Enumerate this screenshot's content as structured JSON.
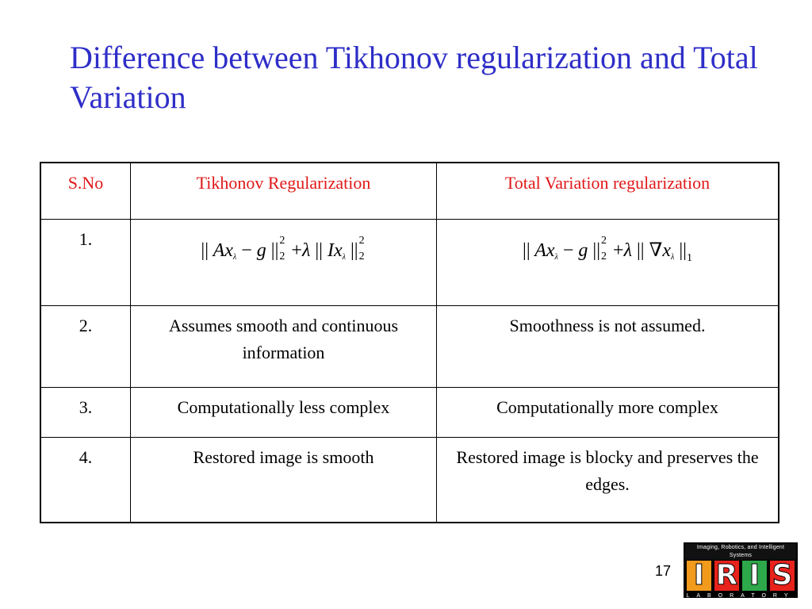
{
  "slide": {
    "title": "Difference between Tikhonov regularization and Total Variation",
    "page_number": "17"
  },
  "table": {
    "headers": [
      "S.No",
      "Tikhonov Regularization",
      "Total Variation regularization"
    ],
    "rows": [
      {
        "sno": "1.",
        "tikhonov": "",
        "tv": ""
      },
      {
        "sno": "2.",
        "tikhonov": "Assumes smooth and continuous information",
        "tv": "Smoothness is not assumed."
      },
      {
        "sno": "3.",
        "tikhonov": "Computationally less complex",
        "tv": "Computationally more complex"
      },
      {
        "sno": "4.",
        "tikhonov": "Restored image is smooth",
        "tv": "Restored image is blocky and preserves the edges."
      }
    ]
  },
  "formulas": {
    "tikhonov": "|| Ax_λ − g ||_2^2 + λ || I x_λ ||_2^2",
    "tv": "|| Ax_λ − g ||_2^2 + λ || ∇x_λ ||_1"
  },
  "logo": {
    "tagline": "Imaging, Robotics, and Intelligent Systems",
    "letters": [
      "I",
      "R",
      "I",
      "S"
    ],
    "letter_colors": [
      "#f29a1c",
      "#e8231c",
      "#2da84a",
      "#e8231c"
    ],
    "bottom": "LABORATORY"
  },
  "colors": {
    "title": "#2e2ec8",
    "header_text": "#e01818"
  }
}
